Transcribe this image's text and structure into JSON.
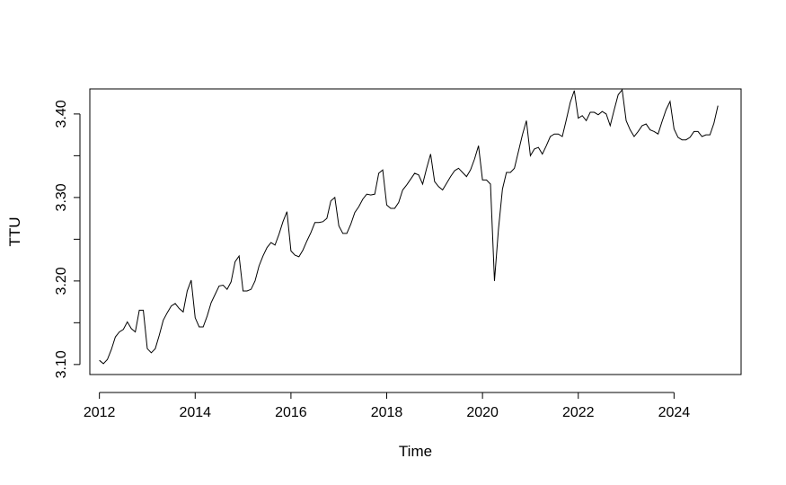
{
  "chart_data": {
    "type": "line",
    "title": "",
    "xlabel": "Time",
    "ylabel": "TTU",
    "xlim": [
      2011.8,
      2025.4
    ],
    "ylim": [
      3.088,
      3.43
    ],
    "x_ticks": [
      2012,
      2014,
      2016,
      2018,
      2020,
      2022,
      2024
    ],
    "x_tick_labels": [
      "2012",
      "2014",
      "2016",
      "2018",
      "2020",
      "2022",
      "2024"
    ],
    "y_ticks": [
      3.1,
      3.15,
      3.2,
      3.25,
      3.3,
      3.35,
      3.4
    ],
    "y_tick_labels": [
      "3.10",
      "",
      "3.20",
      "",
      "3.30",
      "",
      "3.40"
    ],
    "grid": false,
    "legend": "none",
    "frequency": "monthly",
    "start": "2012-01",
    "line_color": "#000000",
    "series": [
      {
        "values": [
          3.105,
          3.101,
          3.106,
          3.118,
          3.133,
          3.139,
          3.142,
          3.151,
          3.143,
          3.139,
          3.165,
          3.165,
          3.119,
          3.114,
          3.119,
          3.135,
          3.153,
          3.162,
          3.17,
          3.173,
          3.167,
          3.163,
          3.188,
          3.201,
          3.156,
          3.145,
          3.145,
          3.158,
          3.174,
          3.184,
          3.194,
          3.195,
          3.19,
          3.199,
          3.223,
          3.23,
          3.188,
          3.188,
          3.19,
          3.2,
          3.218,
          3.23,
          3.24,
          3.246,
          3.243,
          3.256,
          3.271,
          3.283,
          3.236,
          3.231,
          3.229,
          3.237,
          3.248,
          3.258,
          3.27,
          3.27,
          3.271,
          3.275,
          3.296,
          3.3,
          3.266,
          3.257,
          3.257,
          3.268,
          3.282,
          3.289,
          3.298,
          3.304,
          3.303,
          3.304,
          3.329,
          3.333,
          3.291,
          3.287,
          3.287,
          3.294,
          3.309,
          3.315,
          3.322,
          3.329,
          3.327,
          3.316,
          3.335,
          3.352,
          3.319,
          3.313,
          3.309,
          3.317,
          3.325,
          3.332,
          3.335,
          3.33,
          3.325,
          3.333,
          3.346,
          3.362,
          3.321,
          3.321,
          3.316,
          3.2,
          3.262,
          3.31,
          3.33,
          3.33,
          3.335,
          3.355,
          3.375,
          3.392,
          3.35,
          3.358,
          3.36,
          3.352,
          3.362,
          3.373,
          3.376,
          3.376,
          3.373,
          3.393,
          3.414,
          3.428,
          3.395,
          3.398,
          3.392,
          3.402,
          3.402,
          3.399,
          3.403,
          3.4,
          3.386,
          3.405,
          3.423,
          3.429,
          3.392,
          3.381,
          3.373,
          3.379,
          3.386,
          3.388,
          3.381,
          3.379,
          3.376,
          3.391,
          3.405,
          3.415,
          3.382,
          3.372,
          3.369,
          3.369,
          3.372,
          3.379,
          3.379,
          3.373,
          3.375,
          3.375,
          3.389,
          3.41
        ]
      }
    ]
  }
}
